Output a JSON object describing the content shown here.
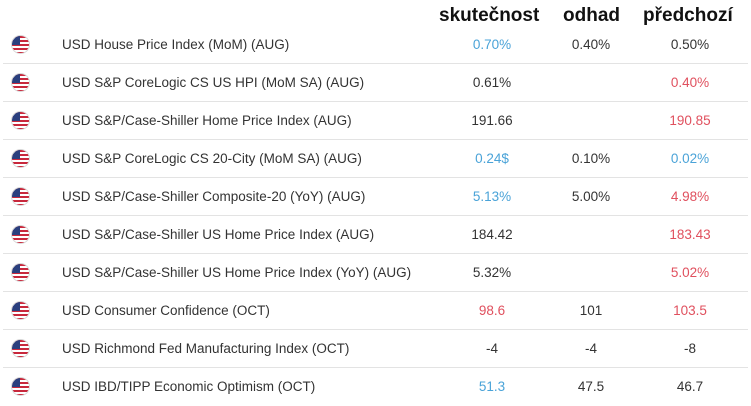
{
  "headers": {
    "actual": "skutečnost",
    "forecast": "odhad",
    "previous": "předchozí"
  },
  "colors": {
    "better": "#4aa3d8",
    "worse": "#e0505e",
    "neutral": "#333333"
  },
  "rows": [
    {
      "flag": "us-flag-icon",
      "event": "USD House Price Index (MoM) (AUG)",
      "actual": "0.70%",
      "actual_color": "blue",
      "forecast": "0.40%",
      "previous": "0.50%",
      "previous_color": "neutral"
    },
    {
      "flag": "us-flag-icon",
      "event": "USD S&P CoreLogic CS US HPI (MoM SA) (AUG)",
      "actual": "0.61%",
      "actual_color": "neutral",
      "forecast": "",
      "previous": "0.40%",
      "previous_color": "red"
    },
    {
      "flag": "us-flag-icon",
      "event": "USD S&P/Case-Shiller Home Price Index (AUG)",
      "actual": "191.66",
      "actual_color": "neutral",
      "forecast": "",
      "previous": "190.85",
      "previous_color": "red"
    },
    {
      "flag": "us-flag-icon",
      "event": "USD S&P CoreLogic CS 20-City (MoM SA) (AUG)",
      "actual": "0.24$",
      "actual_color": "blue",
      "forecast": "0.10%",
      "previous": "0.02%",
      "previous_color": "blue"
    },
    {
      "flag": "us-flag-icon",
      "event": "USD S&P/Case-Shiller Composite-20 (YoY) (AUG)",
      "actual": "5.13%",
      "actual_color": "blue",
      "forecast": "5.00%",
      "previous": "4.98%",
      "previous_color": "red"
    },
    {
      "flag": "us-flag-icon",
      "event": "USD S&P/Case-Shiller US Home Price Index (AUG)",
      "actual": "184.42",
      "actual_color": "neutral",
      "forecast": "",
      "previous": "183.43",
      "previous_color": "red"
    },
    {
      "flag": "us-flag-icon",
      "event": "USD S&P/Case-Shiller US Home Price Index (YoY) (AUG)",
      "actual": "5.32%",
      "actual_color": "neutral",
      "forecast": "",
      "previous": "5.02%",
      "previous_color": "red"
    },
    {
      "flag": "us-flag-icon",
      "event": "USD Consumer Confidence (OCT)",
      "actual": "98.6",
      "actual_color": "red",
      "forecast": "101",
      "previous": "103.5",
      "previous_color": "red"
    },
    {
      "flag": "us-flag-icon",
      "event": "USD Richmond Fed Manufacturing Index (OCT)",
      "actual": "-4",
      "actual_color": "neutral",
      "forecast": "-4",
      "previous": "-8",
      "previous_color": "neutral"
    },
    {
      "flag": "us-flag-icon",
      "event": "USD IBD/TIPP Economic Optimism (OCT)",
      "actual": "51.3",
      "actual_color": "blue",
      "forecast": "47.5",
      "previous": "46.7",
      "previous_color": "neutral"
    }
  ]
}
